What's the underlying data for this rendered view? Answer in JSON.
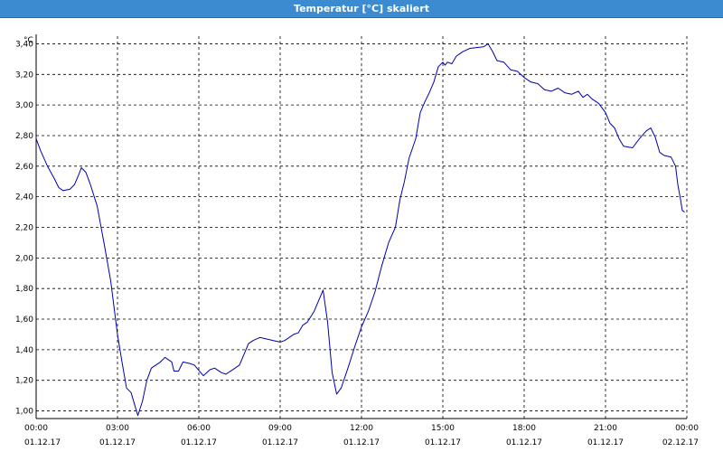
{
  "window": {
    "title": "Temperatur [°C] skaliert"
  },
  "chart_data": {
    "type": "line",
    "title": "Temperatur [°C] skaliert",
    "ylabel": "°C",
    "xlabel": "",
    "ylim": [
      0.95,
      3.45
    ],
    "xlim_hours": [
      0,
      24
    ],
    "grid": true,
    "y_ticks": [
      "1,00",
      "1,20",
      "1,40",
      "1,60",
      "1,80",
      "2,00",
      "2,20",
      "2,40",
      "2,60",
      "2,80",
      "3,00",
      "3,20",
      "3,40"
    ],
    "x_ticks": [
      {
        "time": "00:00",
        "date": "01.12.17"
      },
      {
        "time": "03:00",
        "date": "01.12.17"
      },
      {
        "time": "06:00",
        "date": "01.12.17"
      },
      {
        "time": "09:00",
        "date": "01.12.17"
      },
      {
        "time": "12:00",
        "date": "01.12.17"
      },
      {
        "time": "15:00",
        "date": "01.12.17"
      },
      {
        "time": "18:00",
        "date": "01.12.17"
      },
      {
        "time": "21:00",
        "date": "01.12.17"
      },
      {
        "time": "00:00",
        "date": "02.12.17"
      }
    ],
    "series": [
      {
        "color": "#0000b0",
        "points": [
          [
            "01.12.17 00:00",
            2.78
          ],
          [
            "01.12.17 00:10",
            2.7
          ],
          [
            "01.12.17 00:25",
            2.6
          ],
          [
            "01.12.17 00:40",
            2.52
          ],
          [
            "01.12.17 00:50",
            2.46
          ],
          [
            "01.12.17 01:00",
            2.44
          ],
          [
            "01.12.17 01:15",
            2.45
          ],
          [
            "01.12.17 01:25",
            2.48
          ],
          [
            "01.12.17 01:35",
            2.55
          ],
          [
            "01.12.17 01:40",
            2.59
          ],
          [
            "01.12.17 01:50",
            2.56
          ],
          [
            "01.12.17 02:00",
            2.48
          ],
          [
            "01.12.17 02:15",
            2.34
          ],
          [
            "01.12.17 02:30",
            2.1
          ],
          [
            "01.12.17 02:45",
            1.85
          ],
          [
            "01.12.17 03:00",
            1.5
          ],
          [
            "01.12.17 03:10",
            1.32
          ],
          [
            "01.12.17 03:20",
            1.15
          ],
          [
            "01.12.17 03:30",
            1.12
          ],
          [
            "01.12.17 03:40",
            1.02
          ],
          [
            "01.12.17 03:45",
            0.97
          ],
          [
            "01.12.17 03:55",
            1.06
          ],
          [
            "01.12.17 04:05",
            1.2
          ],
          [
            "01.12.17 04:15",
            1.28
          ],
          [
            "01.12.17 04:25",
            1.3
          ],
          [
            "01.12.17 04:35",
            1.32
          ],
          [
            "01.12.17 04:45",
            1.35
          ],
          [
            "01.12.17 05:00",
            1.32
          ],
          [
            "01.12.17 05:05",
            1.26
          ],
          [
            "01.12.17 05:15",
            1.26
          ],
          [
            "01.12.17 05:25",
            1.32
          ],
          [
            "01.12.17 05:40",
            1.31
          ],
          [
            "01.12.17 05:50",
            1.3
          ],
          [
            "01.12.17 06:10",
            1.23
          ],
          [
            "01.12.17 06:25",
            1.27
          ],
          [
            "01.12.17 06:35",
            1.28
          ],
          [
            "01.12.17 06:50",
            1.25
          ],
          [
            "01.12.17 07:00",
            1.24
          ],
          [
            "01.12.17 07:15",
            1.27
          ],
          [
            "01.12.17 07:30",
            1.3
          ],
          [
            "01.12.17 07:40",
            1.37
          ],
          [
            "01.12.17 07:50",
            1.44
          ],
          [
            "01.12.17 08:00",
            1.46
          ],
          [
            "01.12.17 08:15",
            1.48
          ],
          [
            "01.12.17 08:30",
            1.47
          ],
          [
            "01.12.17 08:45",
            1.46
          ],
          [
            "01.12.17 09:00",
            1.45
          ],
          [
            "01.12.17 09:10",
            1.46
          ],
          [
            "01.12.17 09:20",
            1.48
          ],
          [
            "01.12.17 09:30",
            1.5
          ],
          [
            "01.12.17 09:40",
            1.51
          ],
          [
            "01.12.17 09:50",
            1.56
          ],
          [
            "01.12.17 10:00",
            1.58
          ],
          [
            "01.12.17 10:15",
            1.65
          ],
          [
            "01.12.17 10:25",
            1.72
          ],
          [
            "01.12.17 10:35",
            1.79
          ],
          [
            "01.12.17 10:45",
            1.58
          ],
          [
            "01.12.17 10:55",
            1.25
          ],
          [
            "01.12.17 11:05",
            1.11
          ],
          [
            "01.12.17 11:15",
            1.15
          ],
          [
            "01.12.17 11:30",
            1.28
          ],
          [
            "01.12.17 11:45",
            1.42
          ],
          [
            "01.12.17 12:00",
            1.55
          ],
          [
            "01.12.17 12:15",
            1.65
          ],
          [
            "01.12.17 12:30",
            1.78
          ],
          [
            "01.12.17 12:45",
            1.95
          ],
          [
            "01.12.17 13:00",
            2.1
          ],
          [
            "01.12.17 13:15",
            2.2
          ],
          [
            "01.12.17 13:25",
            2.38
          ],
          [
            "01.12.17 13:35",
            2.5
          ],
          [
            "01.12.17 13:45",
            2.65
          ],
          [
            "01.12.17 14:00",
            2.78
          ],
          [
            "01.12.17 14:10",
            2.95
          ],
          [
            "01.12.17 14:20",
            3.02
          ],
          [
            "01.12.17 14:30",
            3.08
          ],
          [
            "01.12.17 14:40",
            3.15
          ],
          [
            "01.12.17 14:50",
            3.25
          ],
          [
            "01.12.17 15:00",
            3.28
          ],
          [
            "01.12.17 15:05",
            3.26
          ],
          [
            "01.12.17 15:10",
            3.28
          ],
          [
            "01.12.17 15:20",
            3.27
          ],
          [
            "01.12.17 15:30",
            3.32
          ],
          [
            "01.12.17 15:45",
            3.35
          ],
          [
            "01.12.17 16:00",
            3.37
          ],
          [
            "01.12.17 16:30",
            3.38
          ],
          [
            "01.12.17 16:40",
            3.4
          ],
          [
            "01.12.17 16:50",
            3.35
          ],
          [
            "01.12.17 17:00",
            3.29
          ],
          [
            "01.12.17 17:15",
            3.28
          ],
          [
            "01.12.17 17:30",
            3.23
          ],
          [
            "01.12.17 17:45",
            3.22
          ],
          [
            "01.12.17 18:00",
            3.18
          ],
          [
            "01.12.17 18:15",
            3.15
          ],
          [
            "01.12.17 18:30",
            3.14
          ],
          [
            "01.12.17 18:45",
            3.1
          ],
          [
            "01.12.17 19:00",
            3.09
          ],
          [
            "01.12.17 19:15",
            3.11
          ],
          [
            "01.12.17 19:30",
            3.08
          ],
          [
            "01.12.17 19:45",
            3.07
          ],
          [
            "01.12.17 20:00",
            3.09
          ],
          [
            "01.12.17 20:10",
            3.05
          ],
          [
            "01.12.17 20:20",
            3.07
          ],
          [
            "01.12.17 20:30",
            3.04
          ],
          [
            "01.12.17 20:45",
            3.01
          ],
          [
            "01.12.17 21:00",
            2.95
          ],
          [
            "01.12.17 21:10",
            2.88
          ],
          [
            "01.12.17 21:20",
            2.85
          ],
          [
            "01.12.17 21:30",
            2.78
          ],
          [
            "01.12.17 21:40",
            2.73
          ],
          [
            "01.12.17 22:00",
            2.72
          ],
          [
            "01.12.17 22:15",
            2.78
          ],
          [
            "01.12.17 22:30",
            2.83
          ],
          [
            "01.12.17 22:40",
            2.85
          ],
          [
            "01.12.17 22:50",
            2.79
          ],
          [
            "01.12.17 23:00",
            2.69
          ],
          [
            "01.12.17 23:10",
            2.67
          ],
          [
            "01.12.17 23:25",
            2.66
          ],
          [
            "01.12.17 23:35",
            2.6
          ],
          [
            "01.12.17 23:40",
            2.48
          ],
          [
            "01.12.17 23:45",
            2.4
          ],
          [
            "01.12.17 23:50",
            2.31
          ],
          [
            "01.12.17 23:55",
            2.3
          ]
        ]
      }
    ]
  },
  "colors": {
    "titlebar": "#3c8ad0",
    "line": "#0000b0",
    "grid": "#000000"
  }
}
